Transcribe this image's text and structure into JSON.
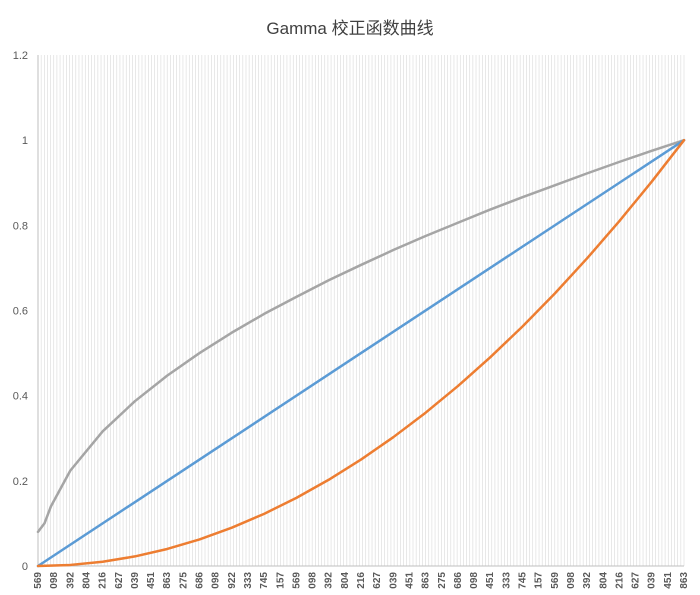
{
  "chart_data": {
    "type": "line",
    "title": "Gamma 校正函数曲线",
    "xlabel": "",
    "ylabel": "",
    "ylim": [
      0,
      1.2
    ],
    "y_ticks": [
      "0",
      "0.2",
      "0.4",
      "0.6",
      "0.8",
      "1",
      "1.2"
    ],
    "x_tick_labels": [
      "569",
      "098",
      "392",
      "804",
      "216",
      "627",
      "039",
      "451",
      "863",
      "275",
      "686",
      "098",
      "922",
      "333",
      "745",
      "157",
      "569",
      "098",
      "392",
      "804",
      "216",
      "627",
      "039",
      "451",
      "863",
      "275",
      "686",
      "098",
      "451",
      "333",
      "745",
      "157",
      "569",
      "098",
      "392",
      "804",
      "216",
      "627",
      "039",
      "451",
      "863"
    ],
    "x_domain": [
      0,
      1
    ],
    "grid": {
      "vertical": true,
      "horizontal": false
    },
    "legend": "none",
    "series": [
      {
        "color": "#a5a5a5",
        "gamma": 0.5,
        "x": [
          0,
          0.01,
          0.02,
          0.05,
          0.1,
          0.15,
          0.2,
          0.25,
          0.3,
          0.35,
          0.4,
          0.45,
          0.5,
          0.55,
          0.6,
          0.65,
          0.7,
          0.75,
          0.8,
          0.85,
          0.9,
          0.95,
          1.0
        ],
        "y": [
          0.08,
          0.1,
          0.14,
          0.224,
          0.316,
          0.387,
          0.447,
          0.5,
          0.548,
          0.592,
          0.632,
          0.671,
          0.707,
          0.742,
          0.775,
          0.806,
          0.837,
          0.866,
          0.894,
          0.922,
          0.949,
          0.975,
          1.0
        ]
      },
      {
        "color": "#5b9bd5",
        "gamma": 1.0,
        "x": [
          0,
          0.25,
          0.5,
          0.75,
          1.0
        ],
        "y": [
          0,
          0.25,
          0.5,
          0.75,
          1.0
        ]
      },
      {
        "color": "#ed7d31",
        "gamma": 2.0,
        "x": [
          0,
          0.05,
          0.1,
          0.15,
          0.2,
          0.25,
          0.3,
          0.35,
          0.4,
          0.45,
          0.5,
          0.55,
          0.6,
          0.65,
          0.7,
          0.75,
          0.8,
          0.85,
          0.9,
          0.95,
          1.0
        ],
        "y": [
          0,
          0.0025,
          0.01,
          0.0225,
          0.04,
          0.0625,
          0.09,
          0.1225,
          0.16,
          0.2025,
          0.25,
          0.3025,
          0.36,
          0.4225,
          0.49,
          0.5625,
          0.64,
          0.7225,
          0.81,
          0.9025,
          1.0
        ]
      }
    ]
  }
}
